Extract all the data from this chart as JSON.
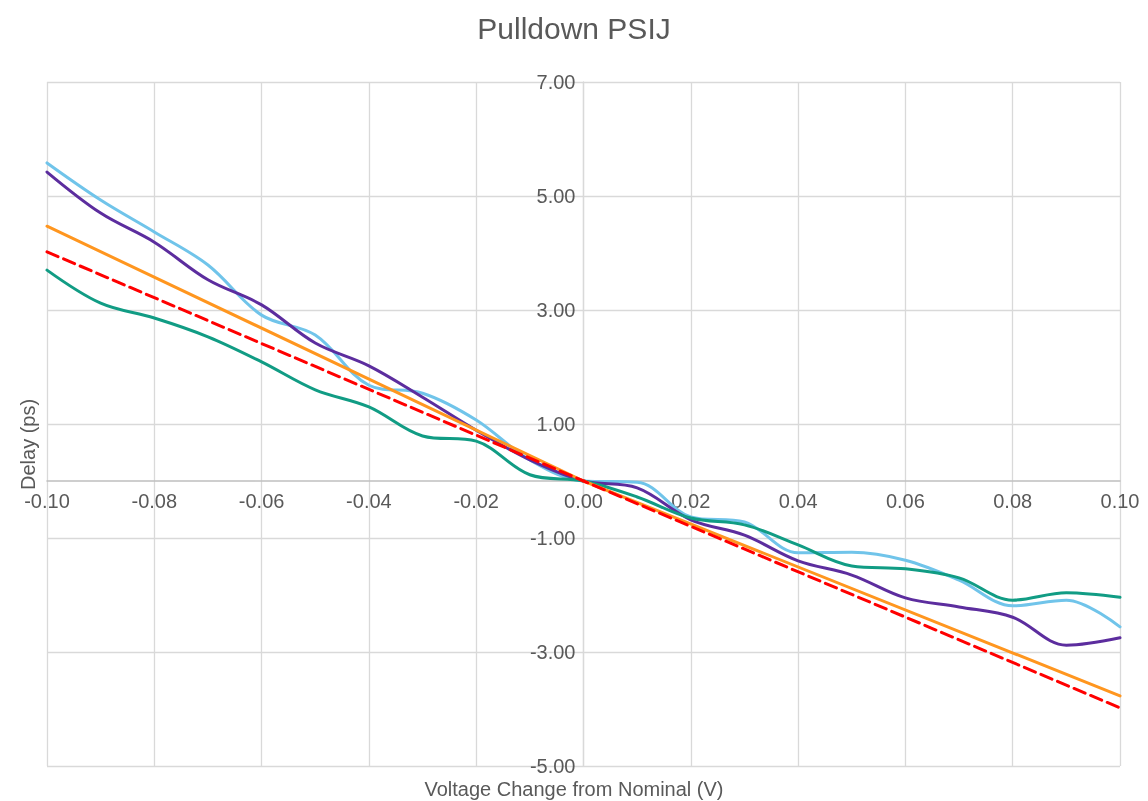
{
  "chart_data": {
    "type": "line",
    "title": "Pulldown PSIJ",
    "xlabel": "Voltage Change from Nominal (V)",
    "ylabel": "Delay (ps)",
    "x": [
      -0.1,
      -0.09,
      -0.08,
      -0.07,
      -0.06,
      -0.05,
      -0.04,
      -0.03,
      -0.02,
      -0.01,
      0,
      0.01,
      0.02,
      0.03,
      0.04,
      0.05,
      0.06,
      0.07,
      0.08,
      0.09,
      0.1
    ],
    "series": [
      {
        "color": "#70c4ea",
        "values": [
          5.58,
          4.93,
          4.37,
          3.79,
          2.91,
          2.56,
          1.68,
          1.54,
          1.07,
          0.37,
          0,
          -0.02,
          -0.63,
          -0.72,
          -1.26,
          -1.25,
          -1.39,
          -1.74,
          -2.19,
          -2.09,
          -2.56
        ]
      },
      {
        "color": "#5c2d9e",
        "values": [
          5.42,
          4.7,
          4.19,
          3.53,
          3.09,
          2.42,
          2.02,
          1.47,
          0.89,
          0.37,
          0,
          -0.12,
          -0.68,
          -0.95,
          -1.4,
          -1.65,
          -2.05,
          -2.21,
          -2.39,
          -2.88,
          -2.75
        ]
      },
      {
        "color": "#119c84",
        "values": [
          3.7,
          3.12,
          2.86,
          2.53,
          2.09,
          1.6,
          1.3,
          0.79,
          0.7,
          0.11,
          0,
          -0.28,
          -0.65,
          -0.77,
          -1.12,
          -1.49,
          -1.54,
          -1.7,
          -2.09,
          -1.96,
          -2.04
        ]
      },
      {
        "color": "#ff961f",
        "x": [
          -0.1,
          0,
          0.1
        ],
        "values": [
          4.47,
          0,
          -3.77
        ]
      },
      {
        "color": "#ff0000",
        "line_style": "dashed",
        "x": [
          -0.1,
          0,
          0.1
        ],
        "values": [
          4.02,
          0,
          -3.98
        ]
      }
    ],
    "xlim": [
      -0.1,
      0.1
    ],
    "xticks": [
      {
        "value": -0.1,
        "label": "-0.10"
      },
      {
        "value": -0.08,
        "label": "-0.08"
      },
      {
        "value": -0.06,
        "label": "-0.06"
      },
      {
        "value": -0.04,
        "label": "-0.04"
      },
      {
        "value": -0.02,
        "label": "-0.02"
      },
      {
        "value": 0,
        "label": "0.00"
      },
      {
        "value": 0.02,
        "label": "0.02"
      },
      {
        "value": 0.04,
        "label": "0.04"
      },
      {
        "value": 0.06,
        "label": "0.06"
      },
      {
        "value": 0.08,
        "label": "0.08"
      },
      {
        "value": 0.1,
        "label": "0.10"
      }
    ],
    "ylim": [
      -5,
      7
    ],
    "yticks": [
      {
        "value": -5,
        "label": "-5.00"
      },
      {
        "value": -3,
        "label": "-3.00"
      },
      {
        "value": -1,
        "label": "-1.00"
      },
      {
        "value": 1,
        "label": "1.00"
      },
      {
        "value": 3,
        "label": "3.00"
      },
      {
        "value": 5,
        "label": "5.00"
      },
      {
        "value": 7,
        "label": "7.00"
      }
    ],
    "grid": true,
    "marker": "none",
    "line_style": "solid"
  }
}
